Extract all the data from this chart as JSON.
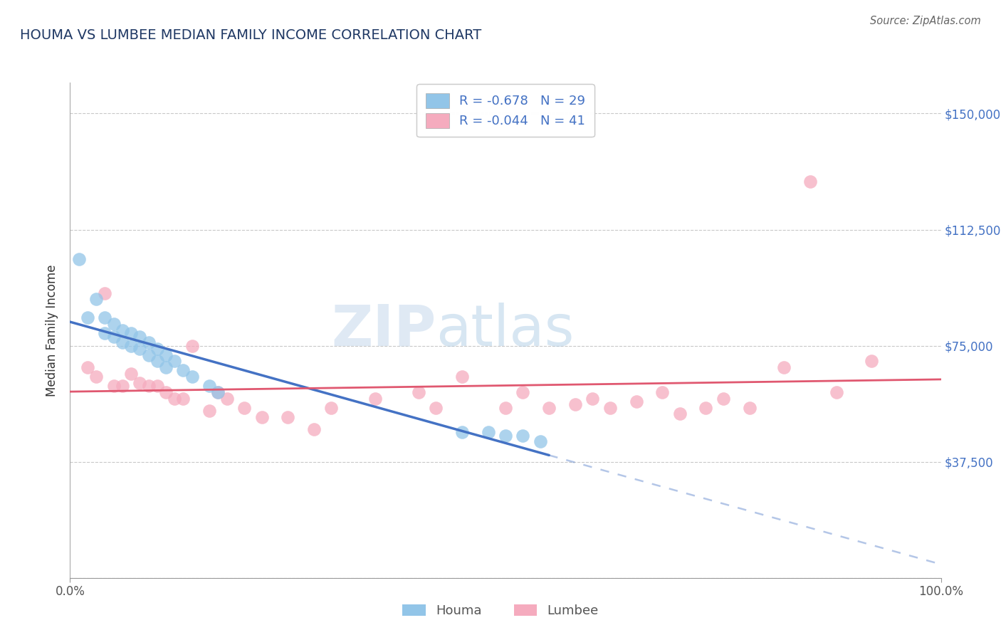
{
  "title": "HOUMA VS LUMBEE MEDIAN FAMILY INCOME CORRELATION CHART",
  "source_text": "Source: ZipAtlas.com",
  "ylabel": "Median Family Income",
  "yticks": [
    0,
    37500,
    75000,
    112500,
    150000
  ],
  "ytick_labels_right": [
    "",
    "$37,500",
    "$75,000",
    "$112,500",
    "$150,000"
  ],
  "xmin": 0.0,
  "xmax": 100.0,
  "ymin": 0,
  "ymax": 160000,
  "houma_R": -0.678,
  "houma_N": 29,
  "lumbee_R": -0.044,
  "lumbee_N": 41,
  "houma_color": "#92c5e8",
  "lumbee_color": "#f5abbe",
  "houma_line_color": "#4472c4",
  "lumbee_line_color": "#e05870",
  "title_color": "#1f3864",
  "grid_color": "#c8c8c8",
  "houma_x": [
    1,
    2,
    3,
    4,
    4,
    5,
    5,
    6,
    6,
    7,
    7,
    8,
    8,
    9,
    9,
    10,
    10,
    11,
    11,
    12,
    13,
    14,
    16,
    17,
    45,
    48,
    50,
    52,
    54
  ],
  "houma_y": [
    103000,
    84000,
    90000,
    84000,
    79000,
    82000,
    78000,
    80000,
    76000,
    79000,
    75000,
    78000,
    74000,
    76000,
    72000,
    74000,
    70000,
    72000,
    68000,
    70000,
    67000,
    65000,
    62000,
    60000,
    47000,
    47000,
    46000,
    46000,
    44000
  ],
  "lumbee_x": [
    2,
    3,
    4,
    5,
    6,
    7,
    8,
    9,
    10,
    11,
    12,
    13,
    14,
    16,
    17,
    18,
    20,
    22,
    25,
    28,
    30,
    35,
    40,
    42,
    45,
    50,
    52,
    55,
    58,
    60,
    62,
    65,
    68,
    70,
    73,
    75,
    78,
    82,
    85,
    88,
    92
  ],
  "lumbee_y": [
    68000,
    65000,
    92000,
    62000,
    62000,
    66000,
    63000,
    62000,
    62000,
    60000,
    58000,
    58000,
    75000,
    54000,
    60000,
    58000,
    55000,
    52000,
    52000,
    48000,
    55000,
    58000,
    60000,
    55000,
    65000,
    55000,
    60000,
    55000,
    56000,
    58000,
    55000,
    57000,
    60000,
    53000,
    55000,
    58000,
    55000,
    68000,
    128000,
    60000,
    70000
  ],
  "solid_end_x": 55,
  "legend_labels": [
    "Houma",
    "Lumbee"
  ],
  "watermark_zip_color": "#c0d8ee",
  "watermark_atlas_color": "#a8c8e8"
}
